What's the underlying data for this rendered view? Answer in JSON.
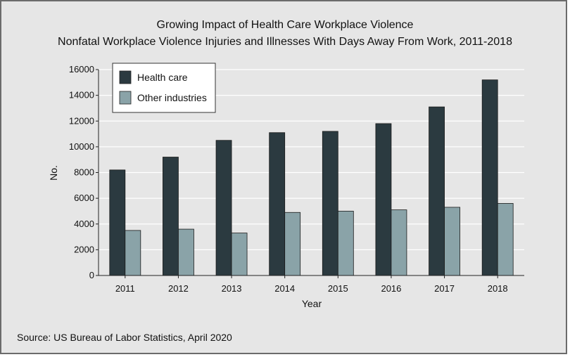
{
  "chart_data": {
    "type": "bar",
    "title": "Growing Impact of Health Care Workplace Violence",
    "subtitle": "Nonfatal Workplace Violence Injuries and Illnesses With Days Away From Work, 2011-2018",
    "xlabel": "Year",
    "ylabel": "No.",
    "ylim": [
      0,
      16000
    ],
    "yticks": [
      0,
      2000,
      4000,
      6000,
      8000,
      10000,
      12000,
      14000,
      16000
    ],
    "ytick_labels": [
      "0",
      "2000",
      "4000",
      "6000",
      "8000",
      "10000",
      "12000",
      "14000",
      "16000"
    ],
    "grid": true,
    "legend_position": "top-left",
    "categories": [
      "2011",
      "2012",
      "2013",
      "2014",
      "2015",
      "2016",
      "2017",
      "2018"
    ],
    "series": [
      {
        "name": "Health care",
        "color": "#2b3a40",
        "values": [
          8200,
          9200,
          10500,
          11100,
          11200,
          11800,
          13100,
          15200
        ]
      },
      {
        "name": "Other industries",
        "color": "#8aa3a8",
        "values": [
          3500,
          3600,
          3300,
          4900,
          5000,
          5100,
          5300,
          5600
        ]
      }
    ]
  },
  "source": "Source: US Bureau of Labor Statistics, April 2020"
}
